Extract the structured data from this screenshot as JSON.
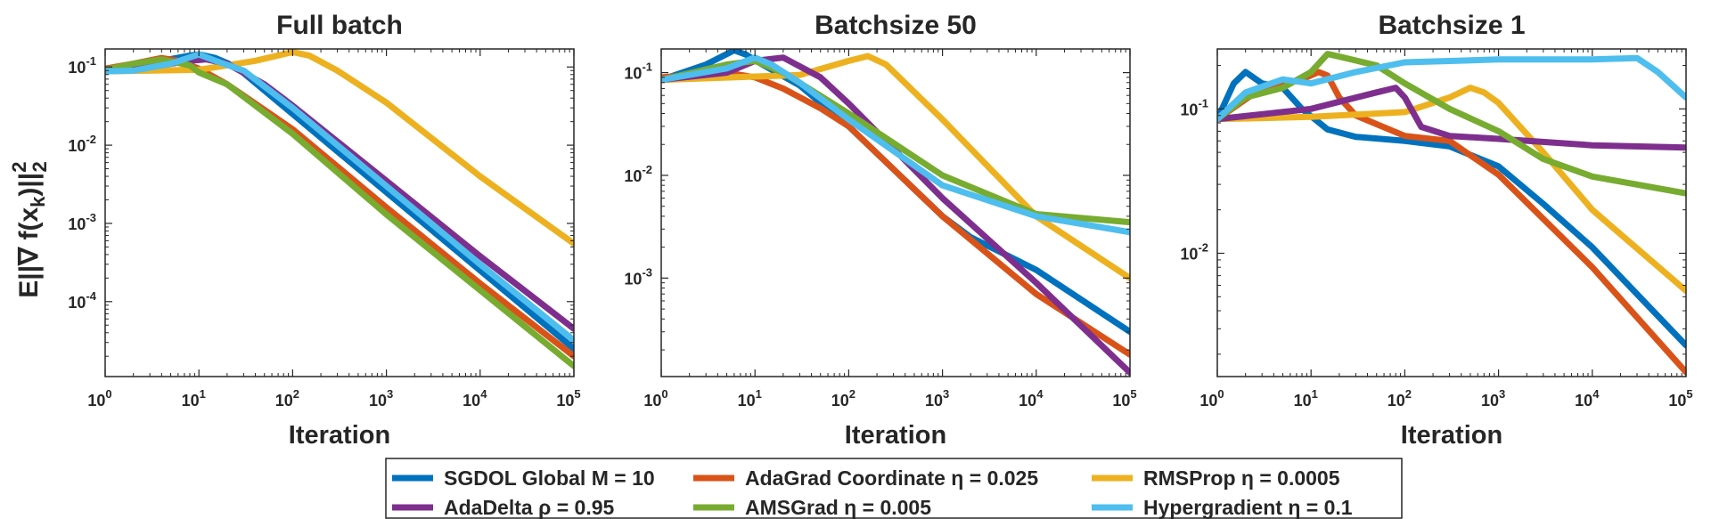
{
  "figure": {
    "ylabel": "E||∇ f(x_k)||_2^2",
    "ylabel_parts": {
      "main": "E||∇ f(x",
      "sub_k": "k",
      "close": ")||",
      "sup": "2",
      "sub_2": "2"
    }
  },
  "chart_data": [
    {
      "type": "line",
      "title": "Full batch",
      "xlabel": "Iteration",
      "xscale": "log",
      "yscale": "log",
      "xlim": [
        1,
        100000
      ],
      "ylim": [
        1.1e-05,
        0.17
      ],
      "xticks": [
        {
          "exp": "0"
        },
        {
          "exp": "1"
        },
        {
          "exp": "2"
        },
        {
          "exp": "3"
        },
        {
          "exp": "4"
        },
        {
          "exp": "5"
        }
      ],
      "yticks": [
        {
          "v": 0.1,
          "exp": "-1"
        },
        {
          "v": 0.01,
          "exp": "-2"
        },
        {
          "v": 0.001,
          "exp": "-3"
        },
        {
          "v": 0.0001,
          "exp": "-4"
        }
      ],
      "series": [
        {
          "name": "SGDOL Global",
          "x": [
            1,
            2,
            4,
            8,
            10,
            15,
            25,
            100,
            1000,
            10000,
            100000
          ],
          "y": [
            0.092,
            0.105,
            0.12,
            0.14,
            0.145,
            0.13,
            0.1,
            0.025,
            0.0025,
            0.00025,
            2.5e-05
          ]
        },
        {
          "name": "AdaGrad Coordinate",
          "x": [
            1,
            2,
            4,
            6,
            10,
            20,
            100,
            1000,
            10000,
            100000
          ],
          "y": [
            0.095,
            0.11,
            0.13,
            0.12,
            0.095,
            0.06,
            0.016,
            0.0016,
            0.00017,
            2e-05
          ]
        },
        {
          "name": "RMSProp",
          "x": [
            1,
            10,
            40,
            100,
            150,
            300,
            1000,
            10000,
            100000
          ],
          "y": [
            0.088,
            0.092,
            0.12,
            0.155,
            0.14,
            0.09,
            0.035,
            0.004,
            0.00055
          ]
        },
        {
          "name": "AdaDelta",
          "x": [
            1,
            3,
            8,
            12,
            20,
            50,
            100,
            1000,
            10000,
            100000
          ],
          "y": [
            0.088,
            0.1,
            0.12,
            0.125,
            0.11,
            0.06,
            0.032,
            0.0035,
            0.00038,
            4.5e-05
          ]
        },
        {
          "name": "AMSGrad",
          "x": [
            1,
            2,
            4,
            8,
            10,
            20,
            100,
            1000,
            10000,
            100000
          ],
          "y": [
            0.092,
            0.11,
            0.125,
            0.105,
            0.085,
            0.06,
            0.014,
            0.0013,
            0.00014,
            1.5e-05
          ]
        },
        {
          "name": "Hypergradient",
          "x": [
            1,
            2,
            5,
            10,
            15,
            30,
            100,
            1000,
            10000,
            100000
          ],
          "y": [
            0.088,
            0.09,
            0.11,
            0.145,
            0.12,
            0.09,
            0.03,
            0.003,
            0.0003,
            3.2e-05
          ]
        }
      ]
    },
    {
      "type": "line",
      "title": "Batchsize 50",
      "xlabel": "Iteration",
      "xscale": "log",
      "yscale": "log",
      "xlim": [
        1,
        100000
      ],
      "ylim": [
        0.00011,
        0.17
      ],
      "xticks": [
        {
          "exp": "0"
        },
        {
          "exp": "1"
        },
        {
          "exp": "2"
        },
        {
          "exp": "3"
        },
        {
          "exp": "4"
        },
        {
          "exp": "5"
        }
      ],
      "yticks": [
        {
          "v": 0.1,
          "exp": "-1"
        },
        {
          "v": 0.01,
          "exp": "-2"
        },
        {
          "v": 0.001,
          "exp": "-3"
        }
      ],
      "series": [
        {
          "name": "SGDOL Global",
          "x": [
            1,
            3,
            6,
            8,
            12,
            30,
            100,
            1000,
            2000,
            10000,
            100000
          ],
          "y": [
            0.085,
            0.12,
            0.165,
            0.15,
            0.12,
            0.075,
            0.03,
            0.004,
            0.0025,
            0.0012,
            0.0003
          ]
        },
        {
          "name": "AdaGrad Coordinate",
          "x": [
            1,
            5,
            10,
            20,
            50,
            100,
            1000,
            10000,
            100000
          ],
          "y": [
            0.09,
            0.1,
            0.09,
            0.07,
            0.045,
            0.03,
            0.004,
            0.0007,
            0.00018
          ]
        },
        {
          "name": "RMSProp",
          "x": [
            1,
            30,
            100,
            160,
            250,
            1000,
            10000,
            100000
          ],
          "y": [
            0.085,
            0.095,
            0.13,
            0.145,
            0.12,
            0.035,
            0.004,
            0.001
          ]
        },
        {
          "name": "AdaDelta",
          "x": [
            1,
            5,
            10,
            20,
            50,
            100,
            1000,
            10000,
            100000
          ],
          "y": [
            0.085,
            0.1,
            0.13,
            0.14,
            0.09,
            0.05,
            0.006,
            0.0009,
            0.00012
          ]
        },
        {
          "name": "AMSGrad",
          "x": [
            1,
            5,
            10,
            20,
            100,
            1000,
            10000,
            100000
          ],
          "y": [
            0.085,
            0.12,
            0.13,
            0.1,
            0.04,
            0.01,
            0.0042,
            0.0035
          ]
        },
        {
          "name": "Hypergradient",
          "x": [
            1,
            5,
            10,
            15,
            30,
            100,
            1000,
            10000,
            100000
          ],
          "y": [
            0.085,
            0.11,
            0.14,
            0.12,
            0.08,
            0.035,
            0.008,
            0.004,
            0.0028
          ]
        }
      ]
    },
    {
      "type": "line",
      "title": "Batchsize 1",
      "xlabel": "Iteration",
      "xscale": "log",
      "yscale": "log",
      "xlim": [
        1,
        100000
      ],
      "ylim": [
        0.0014,
        0.26
      ],
      "xticks": [
        {
          "exp": "0"
        },
        {
          "exp": "1"
        },
        {
          "exp": "2"
        },
        {
          "exp": "3"
        },
        {
          "exp": "4"
        },
        {
          "exp": "5"
        }
      ],
      "yticks": [
        {
          "v": 0.1,
          "exp": "-1"
        },
        {
          "v": 0.01,
          "exp": "-2"
        }
      ],
      "series": [
        {
          "name": "SGDOL Global",
          "x": [
            1,
            1.5,
            2,
            3,
            5,
            8,
            15,
            30,
            100,
            300,
            1000,
            3000,
            10000,
            100000
          ],
          "y": [
            0.085,
            0.15,
            0.18,
            0.15,
            0.14,
            0.1,
            0.072,
            0.064,
            0.06,
            0.055,
            0.04,
            0.022,
            0.011,
            0.0023
          ]
        },
        {
          "name": "AdaGrad Coordinate",
          "x": [
            1,
            3,
            8,
            12,
            15,
            20,
            30,
            100,
            300,
            1000,
            10000,
            100000
          ],
          "y": [
            0.085,
            0.14,
            0.16,
            0.18,
            0.17,
            0.12,
            0.09,
            0.065,
            0.06,
            0.035,
            0.008,
            0.0015
          ]
        },
        {
          "name": "RMSProp",
          "x": [
            1,
            10,
            100,
            300,
            500,
            700,
            1000,
            3000,
            10000,
            100000
          ],
          "y": [
            0.085,
            0.088,
            0.095,
            0.12,
            0.14,
            0.13,
            0.11,
            0.05,
            0.02,
            0.0055
          ]
        },
        {
          "name": "AdaDelta",
          "x": [
            1,
            10,
            50,
            80,
            100,
            150,
            300,
            1000,
            10000,
            100000
          ],
          "y": [
            0.085,
            0.1,
            0.13,
            0.14,
            0.12,
            0.075,
            0.065,
            0.062,
            0.056,
            0.054
          ]
        },
        {
          "name": "AMSGrad",
          "x": [
            1,
            2,
            5,
            10,
            15,
            20,
            50,
            100,
            300,
            1000,
            3000,
            10000,
            100000
          ],
          "y": [
            0.085,
            0.12,
            0.14,
            0.18,
            0.24,
            0.23,
            0.2,
            0.15,
            0.1,
            0.07,
            0.045,
            0.034,
            0.026
          ]
        },
        {
          "name": "Hypergradient",
          "x": [
            1,
            2,
            5,
            10,
            30,
            100,
            1000,
            10000,
            30000,
            50000,
            100000
          ],
          "y": [
            0.085,
            0.13,
            0.16,
            0.15,
            0.18,
            0.21,
            0.22,
            0.22,
            0.225,
            0.18,
            0.12
          ]
        }
      ]
    }
  ],
  "legend": {
    "items": [
      {
        "series": "SGDOL Global",
        "label": "SGDOL Global  M = 10",
        "color": "#0072BD"
      },
      {
        "series": "AdaGrad Coordinate",
        "label": "AdaGrad Coordinate  η = 0.025",
        "color": "#D95319"
      },
      {
        "series": "RMSProp",
        "label": "RMSProp  η = 0.0005",
        "color": "#EDB120"
      },
      {
        "series": "AdaDelta",
        "label": "AdaDelta  ρ = 0.95",
        "color": "#7E2F8E"
      },
      {
        "series": "AMSGrad",
        "label": "AMSGrad  η = 0.005",
        "color": "#77AC30"
      },
      {
        "series": "Hypergradient",
        "label": "Hypergradient  η = 0.1",
        "color": "#4DBEEE"
      }
    ]
  }
}
